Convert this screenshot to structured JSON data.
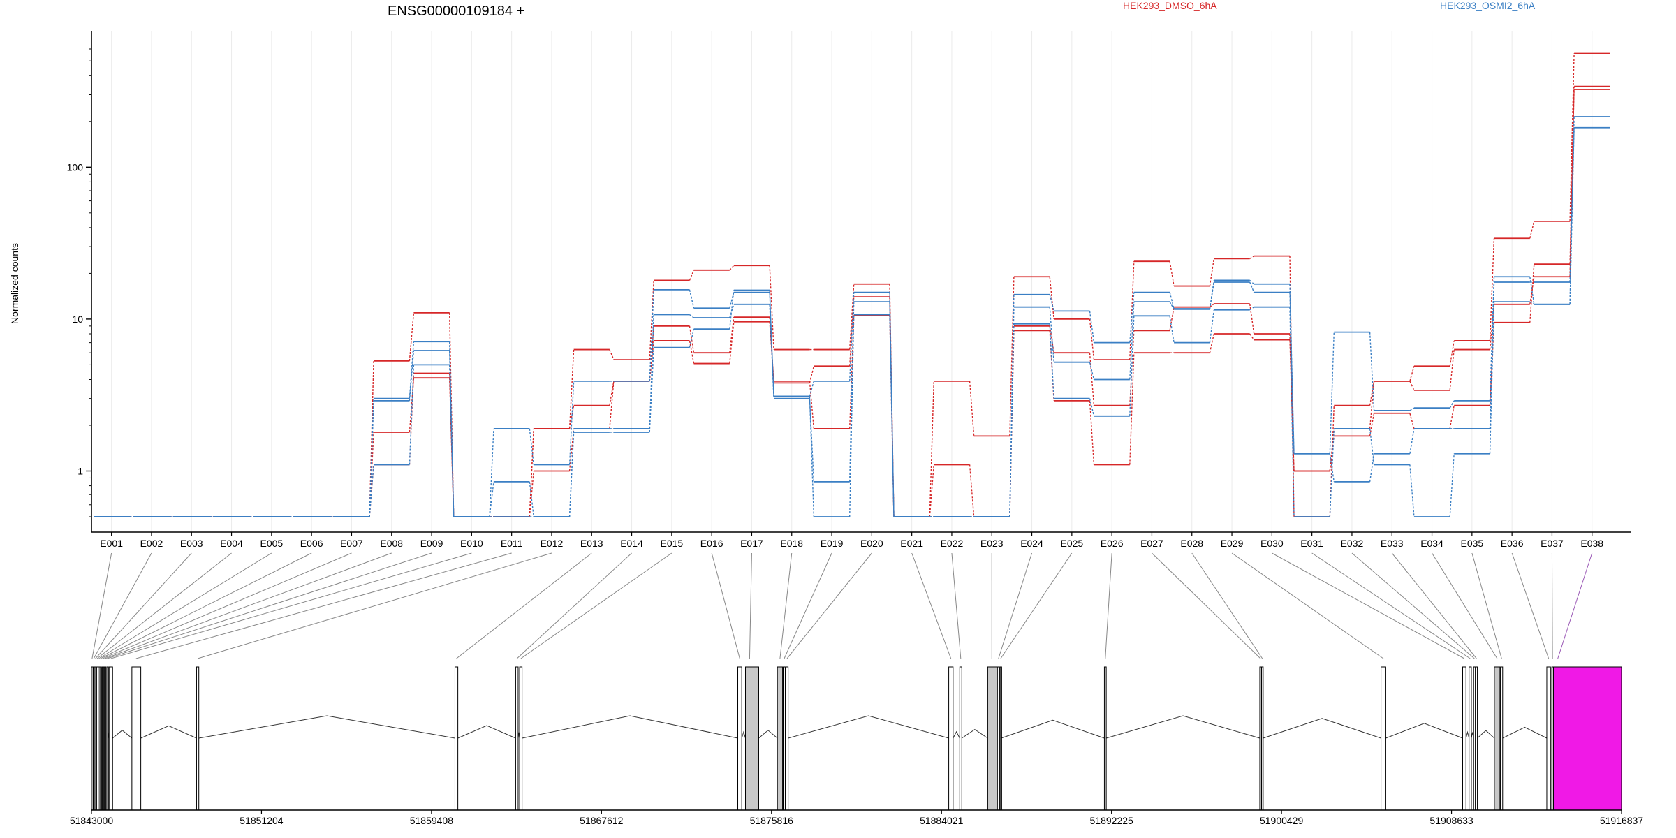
{
  "gene_title": "ENSG00000109184 +",
  "legend": [
    {
      "label": "HEK293_DMSO_6hA",
      "color": "#d62728"
    },
    {
      "label": "HEK293_OSMI2_6hA",
      "color": "#3a7fc4"
    }
  ],
  "highlight_color": "#f019e6",
  "chart_data": {
    "type": "line",
    "title": "ENSG00000109184 +",
    "xlabel": "",
    "ylabel": "Normalized counts",
    "yscale": "log",
    "ylim": [
      0.5,
      600
    ],
    "yticks": [
      1,
      10,
      100
    ],
    "ytick_labels": [
      "1",
      "10",
      "100"
    ],
    "grid": "vertical",
    "legend_position": "top",
    "categories": [
      "E001",
      "E002",
      "E003",
      "E004",
      "E005",
      "E006",
      "E007",
      "E008",
      "E009",
      "E010",
      "E011",
      "E012",
      "E013",
      "E014",
      "E015",
      "E016",
      "E017",
      "E018",
      "E019",
      "E020",
      "E021",
      "E022",
      "E023",
      "E024",
      "E025",
      "E026",
      "E027",
      "E028",
      "E029",
      "E030",
      "E031",
      "E032",
      "E033",
      "E034",
      "E035",
      "E036",
      "E037",
      "E038"
    ],
    "series": [
      {
        "name": "HEK293_DMSO_6hA",
        "color": "#d62728",
        "values": [
          0.5,
          0.5,
          0.5,
          0.5,
          0.5,
          0.5,
          0.5,
          5.3,
          11,
          0.5,
          0.5,
          1.9,
          6.3,
          5.4,
          18,
          21,
          22.5,
          6.3,
          6.3,
          17,
          0.5,
          3.9,
          1.7,
          19,
          10,
          5.4,
          24,
          16.5,
          25,
          26,
          0.5,
          2.7,
          3.9,
          4.9,
          7.2,
          34,
          44,
          560
        ]
      },
      {
        "name": "HEK293_DMSO_6hA",
        "color": "#d62728",
        "values": [
          0.5,
          0.5,
          0.5,
          0.5,
          0.5,
          0.5,
          0.5,
          1.8,
          4.1,
          0.5,
          0.5,
          1.9,
          2.7,
          3.9,
          9,
          6,
          10.3,
          3.8,
          4.9,
          14,
          0.5,
          0.5,
          0.5,
          9,
          6,
          2.7,
          8.4,
          12,
          12.6,
          8,
          1,
          1.9,
          3.9,
          3.4,
          6.3,
          12.5,
          19,
          340
        ]
      },
      {
        "name": "HEK293_DMSO_6hA",
        "color": "#d62728",
        "values": [
          0.5,
          0.5,
          0.5,
          0.5,
          0.5,
          0.5,
          0.5,
          1.1,
          4.4,
          0.5,
          0.5,
          1,
          1.9,
          3.9,
          7.2,
          5.1,
          9.6,
          3.9,
          1.9,
          10.6,
          0.5,
          1.1,
          0.5,
          8.4,
          2.9,
          1.1,
          6,
          6,
          8,
          7.3,
          1,
          1.7,
          2.4,
          1.9,
          2.7,
          9.5,
          23,
          325
        ]
      },
      {
        "name": "HEK293_OSMI2_6hA",
        "color": "#3a7fc4",
        "values": [
          0.5,
          0.5,
          0.5,
          0.5,
          0.5,
          0.5,
          0.5,
          3,
          7.1,
          0.5,
          1.9,
          1.1,
          3.9,
          3.9,
          15.6,
          11.8,
          15,
          3.1,
          3.9,
          15,
          0.5,
          0.5,
          0.5,
          14.5,
          11.3,
          7,
          15,
          11.7,
          18,
          17,
          1.3,
          8.2,
          2.5,
          2.6,
          2.9,
          19,
          12.5,
          215
        ]
      },
      {
        "name": "HEK293_OSMI2_6hA",
        "color": "#3a7fc4",
        "values": [
          0.5,
          0.5,
          0.5,
          0.5,
          0.5,
          0.5,
          0.5,
          2.9,
          6.2,
          0.5,
          0.85,
          0.5,
          1.9,
          1.9,
          10.7,
          10.2,
          12.5,
          3,
          0.85,
          13,
          0.5,
          0.5,
          0.5,
          12,
          5.2,
          4,
          13,
          11.6,
          17.5,
          15,
          1.3,
          0.85,
          1.3,
          1.9,
          1.9,
          17.5,
          17.5,
          180
        ]
      },
      {
        "name": "HEK293_OSMI2_6hA",
        "color": "#3a7fc4",
        "values": [
          0.5,
          0.5,
          0.5,
          0.5,
          0.5,
          0.5,
          0.5,
          1.1,
          5,
          0.5,
          0.5,
          0.5,
          1.8,
          1.8,
          6.5,
          8.6,
          15.5,
          3.1,
          0.5,
          10.7,
          0.5,
          0.5,
          0.5,
          9.3,
          3,
          2.3,
          10.5,
          7,
          11.5,
          12,
          0.5,
          1.9,
          1.1,
          0.5,
          1.3,
          13,
          12.5,
          182
        ]
      }
    ],
    "genomic_axis": {
      "range": [
        51843000,
        51916837
      ],
      "tick_labels": [
        "51843000",
        "51851204",
        "51859408",
        "51867612",
        "51875816",
        "51884021",
        "51892225",
        "51900429",
        "51908633",
        "51916837"
      ],
      "tick_values": [
        51843000,
        51851204,
        51859408,
        51867612,
        51875816,
        51884021,
        51892225,
        51900429,
        51908633,
        51916837
      ]
    },
    "exons": [
      {
        "id": "E001",
        "start": 51843000,
        "end": 51843060,
        "fill": "white"
      },
      {
        "id": "E002",
        "start": 51843090,
        "end": 51843130,
        "fill": "white"
      },
      {
        "id": "E003",
        "start": 51843170,
        "end": 51843210,
        "fill": "white"
      },
      {
        "id": "E004",
        "start": 51843250,
        "end": 51843290,
        "fill": "white"
      },
      {
        "id": "E005",
        "start": 51843330,
        "end": 51843370,
        "fill": "white"
      },
      {
        "id": "E006",
        "start": 51843410,
        "end": 51843460,
        "fill": "white"
      },
      {
        "id": "E007",
        "start": 51843520,
        "end": 51843560,
        "fill": "white"
      },
      {
        "id": "E008",
        "start": 51843620,
        "end": 51843680,
        "fill": "white"
      },
      {
        "id": "E009",
        "start": 51843740,
        "end": 51843780,
        "fill": "white"
      },
      {
        "id": "E010",
        "start": 51843850,
        "end": 51844020,
        "fill": "white"
      },
      {
        "id": "E011",
        "start": 51844950,
        "end": 51845380,
        "fill": "white"
      },
      {
        "id": "E012",
        "start": 51848070,
        "end": 51848180,
        "fill": "white"
      },
      {
        "id": "E013",
        "start": 51860540,
        "end": 51860680,
        "fill": "white"
      },
      {
        "id": "E014",
        "start": 51863470,
        "end": 51863590,
        "fill": "white"
      },
      {
        "id": "E015",
        "start": 51863660,
        "end": 51863780,
        "fill": "white"
      },
      {
        "id": "E016",
        "start": 51874190,
        "end": 51874380,
        "fill": "white"
      },
      {
        "id": "E017",
        "start": 51874560,
        "end": 51875200,
        "fill": "#c8c8c8"
      },
      {
        "id": "E018",
        "start": 51876100,
        "end": 51876350,
        "fill": "#c8c8c8"
      },
      {
        "id": "E019",
        "start": 51876380,
        "end": 51876480,
        "fill": "white"
      },
      {
        "id": "E020",
        "start": 51876510,
        "end": 51876620,
        "fill": "white"
      },
      {
        "id": "E021",
        "start": 51884370,
        "end": 51884580,
        "fill": "white"
      },
      {
        "id": "E022",
        "start": 51884900,
        "end": 51885000,
        "fill": "white"
      },
      {
        "id": "E023",
        "start": 51886250,
        "end": 51886700,
        "fill": "#c8c8c8"
      },
      {
        "id": "E024",
        "start": 51886720,
        "end": 51886820,
        "fill": "white"
      },
      {
        "id": "E025",
        "start": 51886850,
        "end": 51886900,
        "fill": "white"
      },
      {
        "id": "E026",
        "start": 51891880,
        "end": 51891970,
        "fill": "white"
      },
      {
        "id": "E027",
        "start": 51899380,
        "end": 51899450,
        "fill": "white"
      },
      {
        "id": "E028",
        "start": 51899470,
        "end": 51899540,
        "fill": "white"
      },
      {
        "id": "E029",
        "start": 51905230,
        "end": 51905460,
        "fill": "white"
      },
      {
        "id": "E030",
        "start": 51909170,
        "end": 51909330,
        "fill": "white"
      },
      {
        "id": "E031",
        "start": 51909480,
        "end": 51909590,
        "fill": "white"
      },
      {
        "id": "E032",
        "start": 51909700,
        "end": 51909780,
        "fill": "white"
      },
      {
        "id": "E033",
        "start": 51909800,
        "end": 51909880,
        "fill": "white"
      },
      {
        "id": "E034",
        "start": 51910700,
        "end": 51910970,
        "fill": "#c8c8c8"
      },
      {
        "id": "E035",
        "start": 51911000,
        "end": 51911100,
        "fill": "white"
      },
      {
        "id": "E036",
        "start": 51913230,
        "end": 51913410,
        "fill": "white"
      },
      {
        "id": "E037",
        "start": 51913470,
        "end": 51913540,
        "fill": "white"
      },
      {
        "id": "E038",
        "start": 51913560,
        "end": 51916837,
        "fill": "#f019e6"
      }
    ]
  }
}
